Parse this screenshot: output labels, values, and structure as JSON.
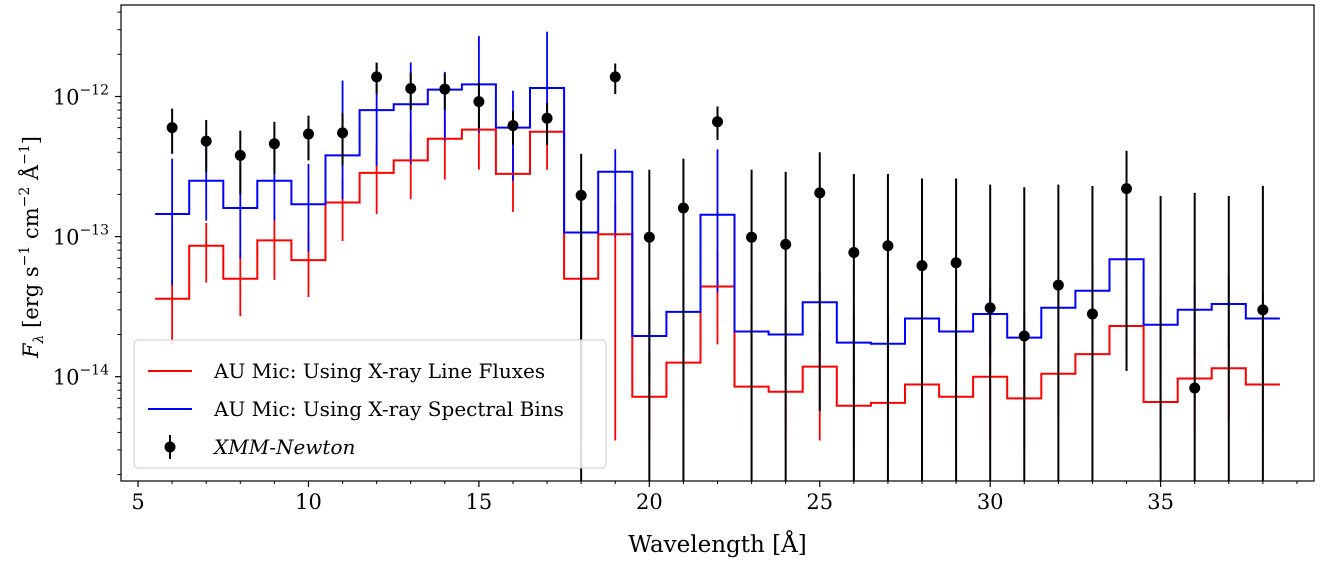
{
  "chart_data": {
    "type": "line",
    "xlabel": "Wavelength [Å]",
    "ylabel": "F_λ [erg s⁻¹ cm⁻² Å⁻¹]",
    "ylabel_parts": {
      "sym": "F",
      "sub": "λ",
      "text": " [erg s",
      "e1": "−1",
      "t2": " cm",
      "e2": "−2",
      "t3": " Å",
      "e3": "−1",
      "t4": "]"
    },
    "xlim": [
      4.5,
      39.5
    ],
    "ylim": [
      1.8e-15,
      4.5e-12
    ],
    "yscale": "log",
    "x_ticks": [
      5,
      10,
      15,
      20,
      25,
      30,
      35
    ],
    "x_tick_labels": [
      "5",
      "10",
      "15",
      "20",
      "25",
      "30",
      "35"
    ],
    "y_ticks": [
      1e-14,
      1e-13,
      1e-12
    ],
    "y_tick_labels": [
      {
        "base": "10",
        "exp": "−14"
      },
      {
        "base": "10",
        "exp": "−13"
      },
      {
        "base": "10",
        "exp": "−12"
      }
    ],
    "legend": {
      "placement": "lower-left"
    },
    "series": [
      {
        "name": "AU Mic: Using X-ray Line Fluxes",
        "kind": "step",
        "color": "#ff0000",
        "x": [
          6,
          7,
          8,
          9,
          10,
          11,
          12,
          13,
          14,
          15,
          16,
          17,
          18,
          19,
          20,
          21,
          22,
          23,
          24,
          25,
          26,
          27,
          28,
          29,
          30,
          31,
          32,
          33,
          34,
          35,
          36,
          37,
          38
        ],
        "values": [
          3.6e-14,
          8.6e-14,
          5e-14,
          9.4e-14,
          6.8e-14,
          1.75e-13,
          2.85e-13,
          3.5e-13,
          5e-13,
          5.8e-13,
          2.8e-13,
          5.6e-13,
          5e-14,
          1.04e-13,
          7.2e-15,
          1.26e-14,
          4.4e-14,
          8.5e-15,
          7.8e-15,
          1.18e-14,
          6.2e-15,
          6.5e-15,
          8.8e-15,
          7.2e-15,
          1e-14,
          7e-15,
          1.05e-14,
          1.45e-14,
          2.3e-14,
          6.6e-15,
          9.7e-15,
          1.15e-14,
          8.8e-15
        ],
        "err_low": [
          1.7e-14,
          4.7e-14,
          2.7e-14,
          4.9e-14,
          3.7e-14,
          9.3e-14,
          1.45e-13,
          1.85e-13,
          2.55e-13,
          3e-13,
          1.5e-13,
          3e-13,
          3.5e-15,
          3.5e-15,
          3.5e-15,
          6e-15,
          1.7e-14,
          3.5e-15,
          3.5e-15,
          3.5e-15,
          3e-15,
          3e-15,
          3e-15,
          3e-15,
          3.5e-15,
          3e-15,
          5e-15,
          7e-15,
          1.1e-14,
          3e-15,
          4e-15,
          5e-15,
          4e-15
        ],
        "err_high": [
          5e-14,
          1.25e-13,
          7.6e-14,
          1.4e-13,
          1.07e-13,
          2.55e-13,
          4.5e-13,
          5.5e-13,
          7.6e-13,
          8.8e-13,
          4.3e-13,
          8.3e-13,
          1e-13,
          1.7e-13,
          1.5e-14,
          2.6e-14,
          7.8e-14,
          1.5e-14,
          1.4e-14,
          2.1e-14,
          1.1e-14,
          1.2e-14,
          1.6e-14,
          1.3e-14,
          1.8e-14,
          1.25e-14,
          1.8e-14,
          2.5e-14,
          4e-14,
          1.2e-14,
          1.6e-14,
          1.9e-14,
          1.5e-14
        ]
      },
      {
        "name": "AU Mic: Using X-ray Spectral Bins",
        "kind": "step",
        "color": "#0000ff",
        "x": [
          6,
          7,
          8,
          9,
          10,
          11,
          12,
          13,
          14,
          15,
          16,
          17,
          18,
          19,
          20,
          21,
          22,
          23,
          24,
          25,
          26,
          27,
          28,
          29,
          30,
          31,
          32,
          33,
          34,
          35,
          36,
          37,
          38
        ],
        "values": [
          1.45e-13,
          2.5e-13,
          1.6e-13,
          2.5e-13,
          1.7e-13,
          3.8e-13,
          8e-13,
          8.8e-13,
          1.12e-12,
          1.22e-12,
          6e-13,
          1.15e-12,
          1.07e-13,
          2.9e-13,
          1.95e-14,
          2.9e-14,
          1.43e-13,
          2.1e-14,
          2e-14,
          3.4e-14,
          1.75e-14,
          1.72e-14,
          2.6e-14,
          2.1e-14,
          2.8e-14,
          1.9e-14,
          3.1e-14,
          4.1e-14,
          6.9e-14,
          2.35e-14,
          3e-14,
          3.3e-14,
          2.6e-14
        ],
        "err_low": [
          4.5e-14,
          1.3e-13,
          7e-14,
          1.3e-13,
          7.8e-14,
          1.85e-13,
          3.2e-13,
          3.3e-13,
          4.8e-13,
          5.5e-13,
          2.5e-13,
          5.5e-13,
          1e-14,
          1e-13,
          1e-14,
          1.5e-14,
          4e-14,
          1e-14,
          1e-14,
          1.5e-14,
          8e-15,
          8e-15,
          1.2e-14,
          1e-14,
          1.4e-14,
          9e-15,
          1.5e-14,
          2e-14,
          3.5e-14,
          1.1e-14,
          1.4e-14,
          1.6e-14,
          1.2e-14
        ],
        "err_high": [
          3.6e-13,
          4.5e-13,
          3.2e-13,
          4.5e-13,
          3.3e-13,
          1.3e-12,
          1.75e-12,
          1.75e-12,
          1.5e-12,
          2.7e-12,
          1.1e-12,
          2.9e-12,
          1.8e-13,
          4.2e-13,
          3e-14,
          4.5e-14,
          4.2e-13,
          3.3e-14,
          3.2e-14,
          5.5e-14,
          2.8e-14,
          2.7e-14,
          4e-14,
          3.3e-14,
          4.4e-14,
          3e-14,
          4.8e-14,
          6.3e-14,
          1e-13,
          3.7e-14,
          4.6e-14,
          5.1e-14,
          4e-14
        ]
      },
      {
        "name": "XMM-Newton",
        "kind": "errorbar",
        "color": "#000000",
        "x": [
          6,
          7,
          8,
          9,
          10,
          11,
          12,
          13,
          14,
          15,
          16,
          17,
          18,
          19,
          20,
          21,
          22,
          23,
          24,
          25,
          26,
          27,
          28,
          29,
          30,
          31,
          32,
          33,
          34,
          35,
          36,
          37,
          38
        ],
        "values": [
          6e-13,
          4.8e-13,
          3.8e-13,
          4.6e-13,
          5.4e-13,
          5.5e-13,
          1.38e-12,
          1.14e-12,
          1.13e-12,
          9.2e-13,
          6.2e-13,
          7e-13,
          1.97e-13,
          1.38e-12,
          9.9e-14,
          1.6e-13,
          6.6e-13,
          9.9e-14,
          8.8e-14,
          2.05e-13,
          7.7e-14,
          8.6e-14,
          6.2e-14,
          6.5e-14,
          3.1e-14,
          1.95e-14,
          4.5e-14,
          2.8e-14,
          2.2e-13,
          null,
          8.3e-15,
          null,
          3e-14
        ],
        "err_low": [
          3.9e-13,
          2.9e-13,
          2e-13,
          2.8e-13,
          3.5e-13,
          3.2e-13,
          1.04e-12,
          8e-13,
          8e-13,
          5.9e-13,
          4.5e-13,
          4.5e-13,
          1e-15,
          1.04e-12,
          1e-15,
          1e-15,
          4.9e-13,
          1e-15,
          1e-15,
          5.7e-15,
          1e-15,
          1e-15,
          1e-15,
          1e-15,
          1e-15,
          1e-15,
          1e-15,
          1e-15,
          1.1e-14,
          1e-15,
          1e-15,
          1e-15,
          1e-15
        ],
        "err_high": [
          8.2e-13,
          6.8e-13,
          5.7e-13,
          6.6e-13,
          7.3e-13,
          7.6e-13,
          1.74e-12,
          1.48e-12,
          1.46e-12,
          1.25e-12,
          7.9e-13,
          9e-13,
          3.9e-13,
          1.72e-12,
          3e-13,
          3.6e-13,
          8.5e-13,
          3e-13,
          2.9e-13,
          4e-13,
          2.8e-13,
          2.8e-13,
          2.6e-13,
          2.6e-13,
          2.35e-13,
          2.25e-13,
          2.35e-13,
          2.3e-13,
          4.1e-13,
          1.95e-13,
          2.05e-13,
          1.95e-13,
          2.3e-13
        ]
      }
    ]
  }
}
